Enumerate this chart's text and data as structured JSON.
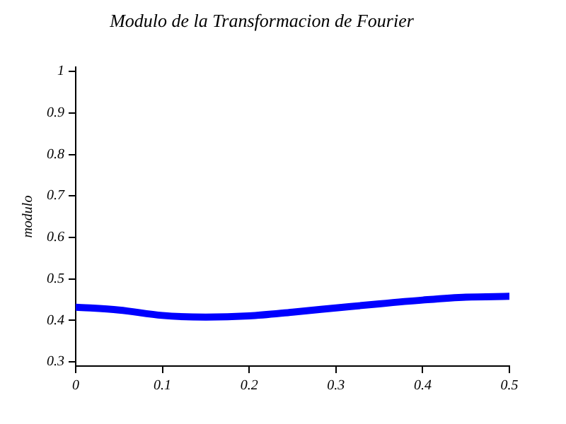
{
  "chart_data": {
    "type": "line",
    "title": "Modulo de la Transformacion de Fourier",
    "ylabel": "modulo",
    "x": [
      0,
      0.05,
      0.1,
      0.15,
      0.2,
      0.25,
      0.3,
      0.35,
      0.4,
      0.45,
      0.5
    ],
    "series": [
      {
        "color": "#0000ff",
        "values": [
          0.432,
          0.425,
          0.412,
          0.408,
          0.411,
          0.42,
          0.43,
          0.44,
          0.449,
          0.456,
          0.458
        ]
      }
    ],
    "xlim": [
      0,
      0.5
    ],
    "xticks": [
      0,
      0.1,
      0.2,
      0.3,
      0.4,
      0.5
    ],
    "ylim": [
      0.29,
      1.01
    ],
    "yticks": [
      0.3,
      0.4,
      0.5,
      0.6,
      0.7,
      0.8,
      0.9,
      1
    ],
    "grid": false,
    "legend": false,
    "marker": "none",
    "line_style": "solid"
  }
}
